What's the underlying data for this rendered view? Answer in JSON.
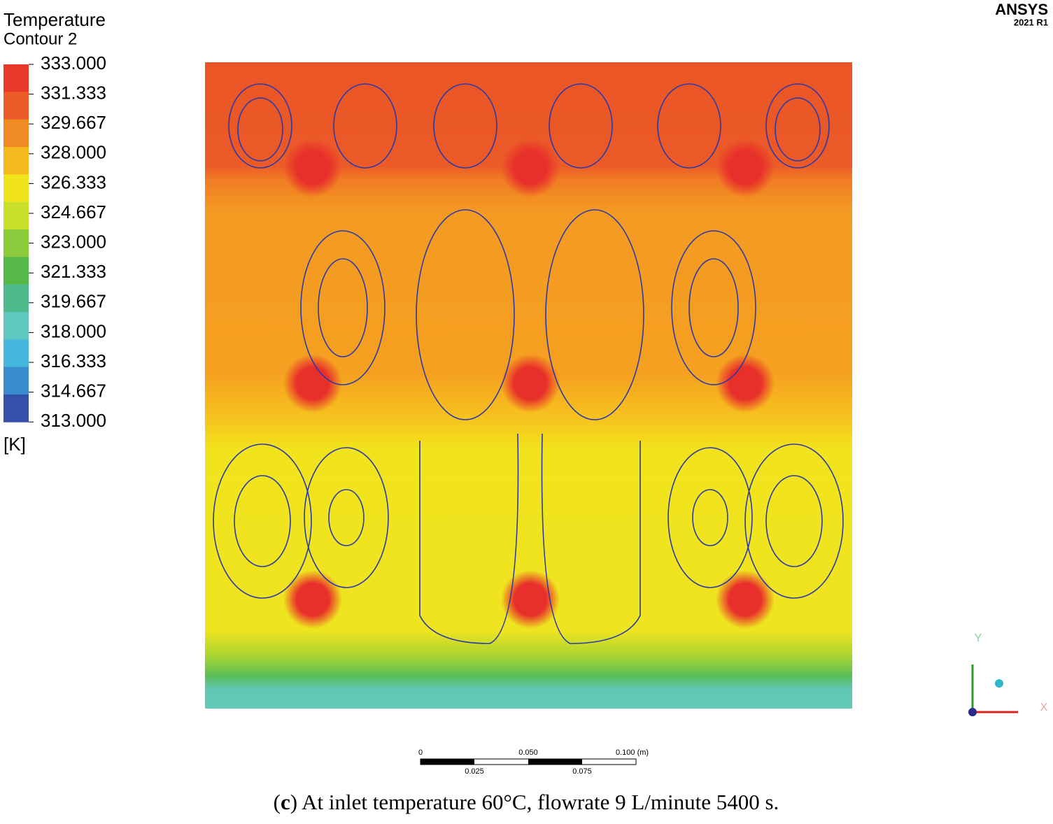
{
  "legend": {
    "title": "Temperature",
    "subtitle": "Contour 2",
    "levels": [
      "333.000",
      "331.333",
      "329.667",
      "328.000",
      "326.333",
      "324.667",
      "323.000",
      "321.333",
      "319.667",
      "318.000",
      "316.333",
      "314.667",
      "313.000"
    ],
    "colors": [
      "#e8392a",
      "#ec5a28",
      "#f08a22",
      "#f5b81e",
      "#f2e41c",
      "#c8df2c",
      "#8ccb3c",
      "#55b848",
      "#4ebc8a",
      "#5fc8c0",
      "#46b8e0",
      "#3a8ad0",
      "#3550a8"
    ],
    "unit": "[K]"
  },
  "logo": {
    "name": "ANSYS",
    "version": "2021 R1"
  },
  "triad": {
    "y": "Y",
    "x": "X"
  },
  "scale_bar": {
    "top": [
      "0",
      "0.050",
      "0.100 (m)"
    ],
    "bottom": [
      "0.025",
      "0.075"
    ]
  },
  "caption": {
    "open": "(",
    "label": "c",
    "text": ") At inlet temperature 60°C, flowrate 9 L/minute 5400 s."
  }
}
